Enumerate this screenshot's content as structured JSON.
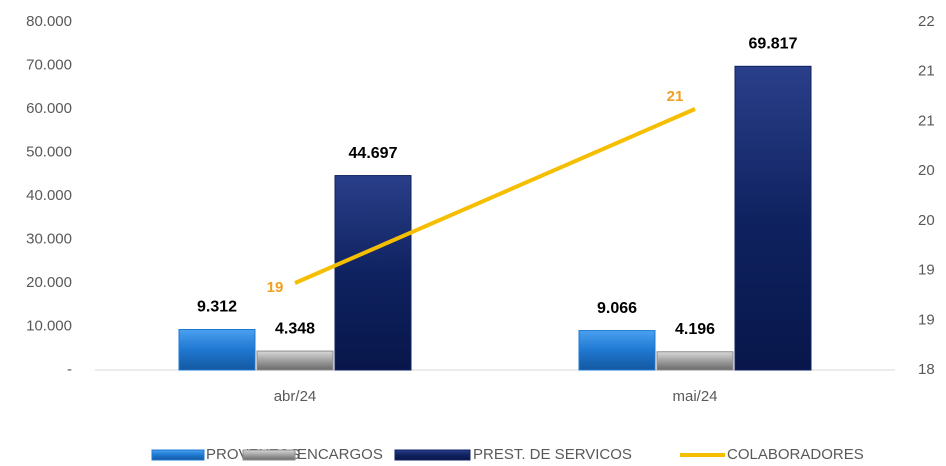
{
  "chart_data": {
    "type": "bar",
    "categories": [
      "abr/24",
      "mai/24"
    ],
    "series": [
      {
        "name": "PROVENTOS",
        "color": "#1f78d1",
        "values": [
          9312,
          9066
        ],
        "value_labels": [
          "9.312",
          "9.066"
        ]
      },
      {
        "name": "ENCARGOS",
        "color": "#8c8c8c",
        "values": [
          4348,
          4196
        ],
        "value_labels": [
          "4.348",
          "4.196"
        ]
      },
      {
        "name": "PREST. DE SERVICOS",
        "color": "#0f2260",
        "values": [
          44697,
          69817
        ],
        "value_labels": [
          "44.697",
          "69.817"
        ]
      },
      {
        "name": "COLABORADORES",
        "type": "line",
        "axis": "y2",
        "color": "#f5be00",
        "values": [
          19,
          21
        ]
      }
    ],
    "ylim": [
      0,
      80000
    ],
    "yticks": [
      {
        "value": 0,
        "label": "-"
      },
      {
        "value": 10000,
        "label": "10.000"
      },
      {
        "value": 20000,
        "label": "20.000"
      },
      {
        "value": 30000,
        "label": "30.000"
      },
      {
        "value": 40000,
        "label": "40.000"
      },
      {
        "value": 50000,
        "label": "50.000"
      },
      {
        "value": 60000,
        "label": "60.000"
      },
      {
        "value": 70000,
        "label": "70.000"
      },
      {
        "value": 80000,
        "label": "80.000"
      }
    ],
    "y2lim": [
      18,
      22
    ],
    "y2ticks": [
      18,
      {
        "value": 18.571,
        "label": "19"
      },
      {
        "value": 19.143,
        "label": "19"
      },
      {
        "value": 19.714,
        "label": "20"
      },
      {
        "value": 20.286,
        "label": "20"
      },
      {
        "value": 20.857,
        "label": "21"
      },
      {
        "value": 21.429,
        "label": "21"
      },
      22
    ],
    "grid": false,
    "legend": "bottom"
  }
}
